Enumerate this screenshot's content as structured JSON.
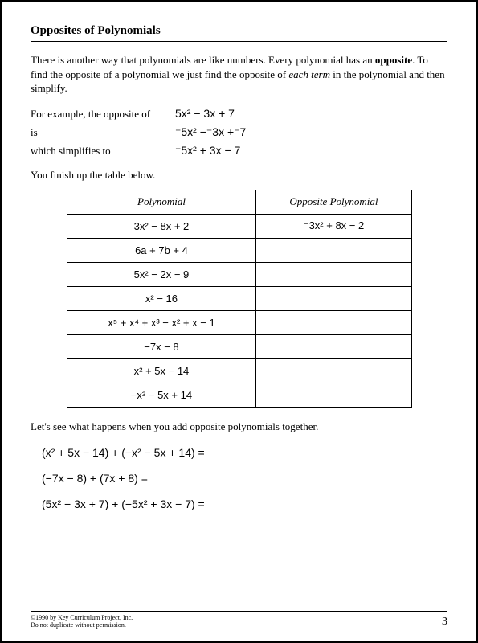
{
  "title": "Opposites of Polynomials",
  "intro_html": "There is another way that polynomials are like numbers.  Every polynomial has an <b>opposite</b>.  To find the opposite of a polynomial we just find the opposite of <i>each term</i> in the polynomial and then simplify.",
  "example": {
    "l1": "For example, the opposite of",
    "e1": "5x² − 3x + 7",
    "l2": "is",
    "e2": "⁻5x² −⁻3x +⁻7",
    "l3": "which simplifies to",
    "e3": "⁻5x² + 3x − 7"
  },
  "finish": "You finish up the table below.",
  "table": {
    "h1": "Polynomial",
    "h2": "Opposite Polynomial",
    "rows": [
      {
        "p": "3x² − 8x + 2",
        "o": "⁻3x² + 8x − 2"
      },
      {
        "p": "6a + 7b + 4",
        "o": ""
      },
      {
        "p": "5x² − 2x − 9",
        "o": ""
      },
      {
        "p": "x² − 16",
        "o": ""
      },
      {
        "p": "x⁵ + x⁴ + x³ − x² + x − 1",
        "o": ""
      },
      {
        "p": "−7x − 8",
        "o": ""
      },
      {
        "p": "x² + 5x − 14",
        "o": ""
      },
      {
        "p": "−x² − 5x + 14",
        "o": ""
      }
    ]
  },
  "lets": "Let's see what happens when you add opposite polynomials together.",
  "eqs": [
    "(x² + 5x − 14) + (−x² − 5x + 14) =",
    "(−7x − 8) + (7x + 8) =",
    "(5x² − 3x + 7) + (−5x² + 3x − 7) ="
  ],
  "footer": {
    "copyright": "©1990 by Key Curriculum Project, Inc.",
    "dup": "Do not duplicate without permission.",
    "page": "3"
  }
}
